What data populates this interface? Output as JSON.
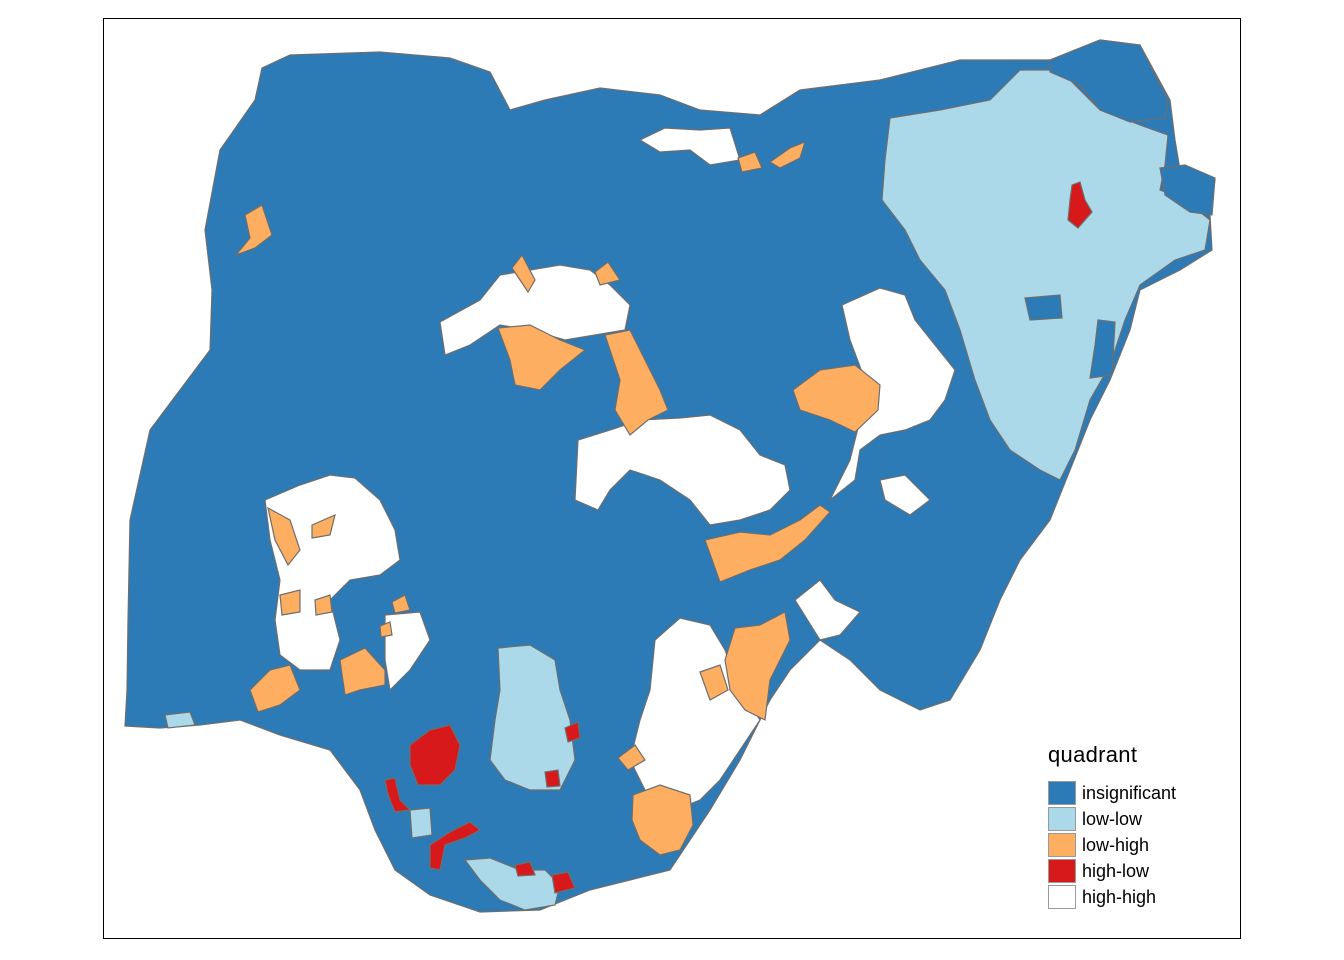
{
  "legend": {
    "title": "quadrant",
    "items": [
      {
        "label": "insignificant",
        "color": "#2c7bb6"
      },
      {
        "label": "low-low",
        "color": "#abd9e9"
      },
      {
        "label": "low-high",
        "color": "#fdae61"
      },
      {
        "label": "high-low",
        "color": "#d7191c"
      },
      {
        "label": "high-high",
        "color": "#ffffff"
      }
    ]
  },
  "map": {
    "regions": [
      {
        "category": "insignificant",
        "name": "country-base"
      },
      {
        "category": "low-low",
        "name": "northeast-cluster"
      },
      {
        "category": "insignificant",
        "name": "far-northeast-block"
      },
      {
        "category": "insignificant",
        "name": "east-border-block"
      },
      {
        "category": "low-low",
        "name": "south-central-cluster"
      },
      {
        "category": "low-low",
        "name": "south-delta-cluster"
      },
      {
        "category": "low-low",
        "name": "southwest-coast-patch"
      },
      {
        "category": "high-high",
        "name": "north-top-patch"
      },
      {
        "category": "high-high",
        "name": "northwest-central-cluster"
      },
      {
        "category": "high-high",
        "name": "central-cluster"
      },
      {
        "category": "high-high",
        "name": "northeast-central-cluster"
      },
      {
        "category": "high-high",
        "name": "west-cluster"
      },
      {
        "category": "high-high",
        "name": "southeast-cluster"
      },
      {
        "category": "high-high",
        "name": "east-patch"
      },
      {
        "category": "low-high",
        "name": "north-top-spot-1"
      },
      {
        "category": "low-high",
        "name": "north-top-spot-2"
      },
      {
        "category": "low-high",
        "name": "northwest-spot"
      },
      {
        "category": "low-high",
        "name": "north-central-spot-1"
      },
      {
        "category": "low-high",
        "name": "north-central-spot-2"
      },
      {
        "category": "low-high",
        "name": "north-central-band"
      },
      {
        "category": "low-high",
        "name": "northcentral-strip"
      },
      {
        "category": "low-high",
        "name": "central-east-spot"
      },
      {
        "category": "low-high",
        "name": "central-band"
      },
      {
        "category": "low-high",
        "name": "west-spots"
      },
      {
        "category": "low-high",
        "name": "west-south-spots"
      },
      {
        "category": "low-high",
        "name": "east-spots"
      },
      {
        "category": "low-high",
        "name": "southeast-spot"
      },
      {
        "category": "high-low",
        "name": "south-spot-1"
      },
      {
        "category": "high-low",
        "name": "south-spot-2"
      },
      {
        "category": "high-low",
        "name": "south-spot-3"
      },
      {
        "category": "high-low",
        "name": "south-spot-4"
      },
      {
        "category": "high-low",
        "name": "south-coast-spot"
      },
      {
        "category": "high-low",
        "name": "northeast-spot"
      }
    ]
  }
}
